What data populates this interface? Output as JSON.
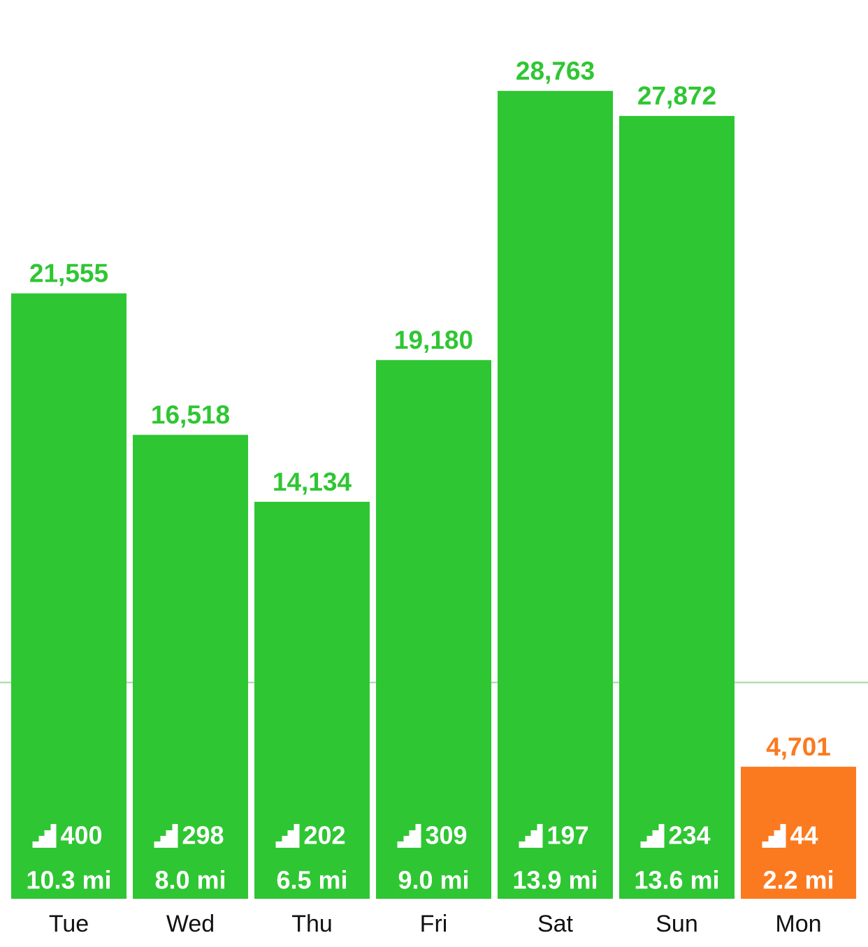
{
  "chart_data": {
    "type": "bar",
    "categories": [
      "Tue",
      "Wed",
      "Thu",
      "Fri",
      "Sat",
      "Sun",
      "Mon"
    ],
    "values": [
      21555,
      16518,
      14134,
      19180,
      28763,
      27872,
      4701
    ],
    "value_labels": [
      "21,555",
      "16,518",
      "14,134",
      "19,180",
      "28,763",
      "27,872",
      "4,701"
    ],
    "floors": [
      400,
      298,
      202,
      309,
      197,
      234,
      44
    ],
    "distances": [
      "10.3 mi",
      "8.0 mi",
      "6.5 mi",
      "9.0 mi",
      "13.9 mi",
      "13.6 mi",
      "2.2 mi"
    ],
    "colors": [
      "#2fc633",
      "#2fc633",
      "#2fc633",
      "#2fc633",
      "#2fc633",
      "#2fc633",
      "#fb7a20"
    ],
    "goal_line": 7700,
    "goal_color": "#9fd99c",
    "ylim": [
      0,
      32000
    ]
  }
}
